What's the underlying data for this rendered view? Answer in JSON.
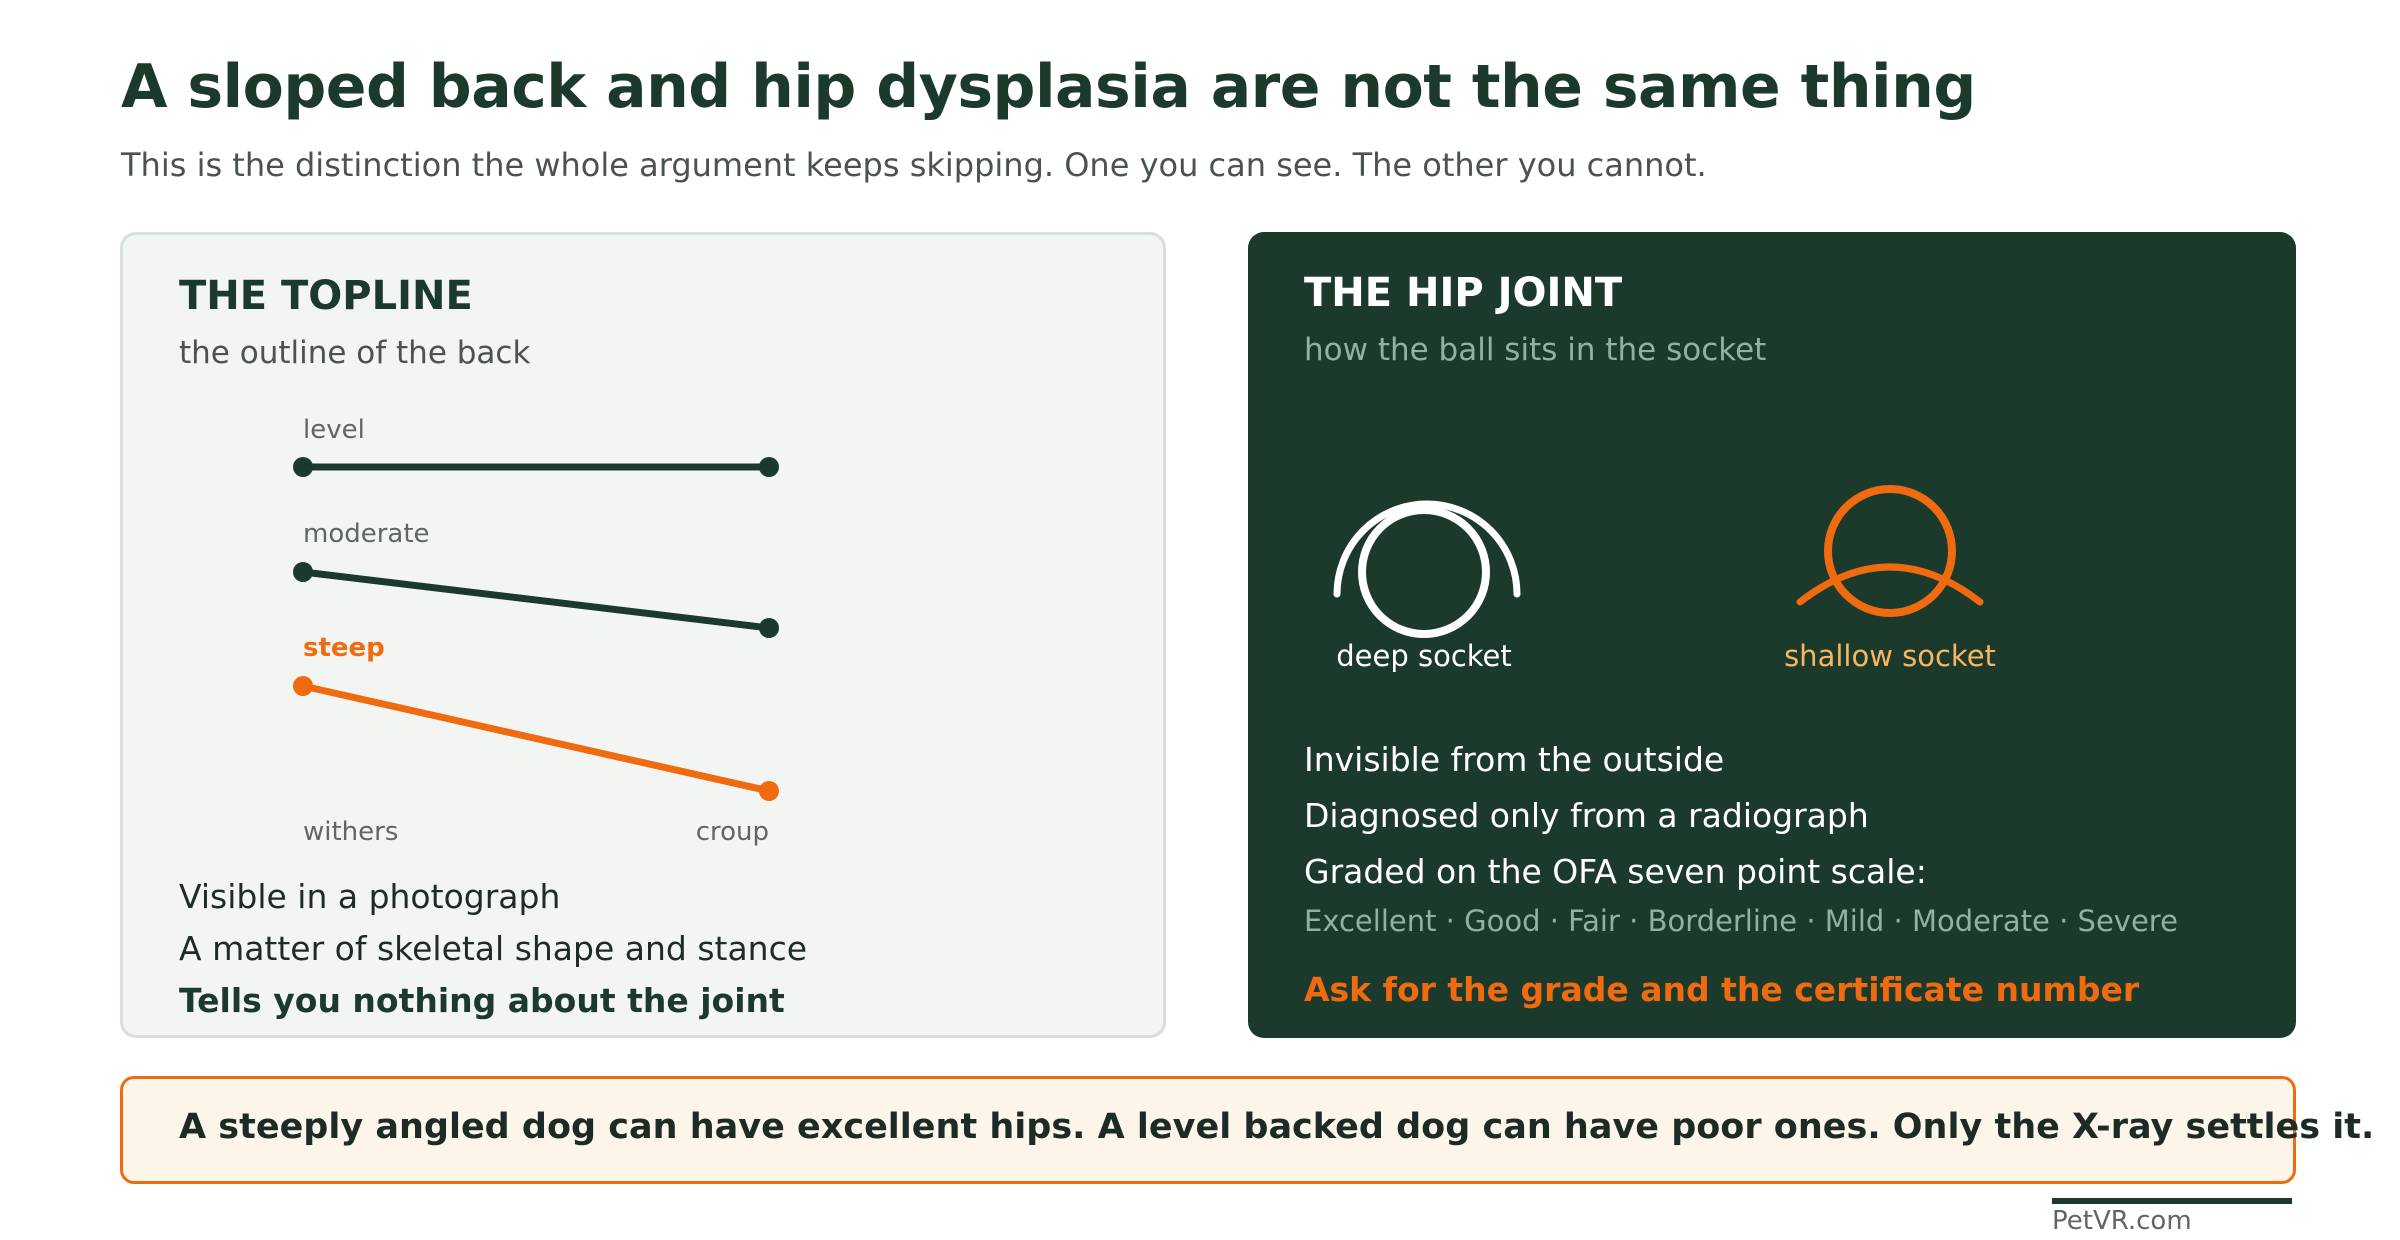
{
  "header": {
    "title": "A sloped back and hip dysplasia are not the same thing",
    "subtitle": "This is the distinction the whole argument keeps skipping. One you can see. The other you cannot."
  },
  "topline": {
    "title": "THE TOPLINE",
    "subtitle": "the outline of the back",
    "rows": [
      {
        "label": "level"
      },
      {
        "label": "moderate"
      },
      {
        "label": "steep"
      }
    ],
    "axis": {
      "start": "withers",
      "end": "croup"
    },
    "lines": [
      "Visible in a photograph",
      "A matter of skeletal shape and stance",
      "Tells you nothing about the joint"
    ]
  },
  "hip": {
    "title": "THE HIP JOINT",
    "subtitle": "how the ball sits in the socket",
    "sockets": [
      {
        "label": "deep socket",
        "color": "#ffffff"
      },
      {
        "label": "shallow socket",
        "color": "#f06a0f"
      }
    ],
    "lines": [
      "Invisible from the outside",
      "Diagnosed only from a radiograph",
      "Graded on the OFA seven point scale:"
    ],
    "grades": "Excellent · Good · Fair · Borderline · Mild · Moderate · Severe",
    "cta": "Ask for the grade and the certificate number"
  },
  "banner": {
    "text": "A steeply angled dog can have excellent hips. A level backed dog can have poor ones. Only the X-ray settles it."
  },
  "footer": {
    "brand": "PetVR.com"
  },
  "colors": {
    "dark_green": "#1c3a2c",
    "accent_orange": "#f06a0f",
    "muted_green": "#8fb39f",
    "socket_label_shallow": "#f7b660"
  }
}
